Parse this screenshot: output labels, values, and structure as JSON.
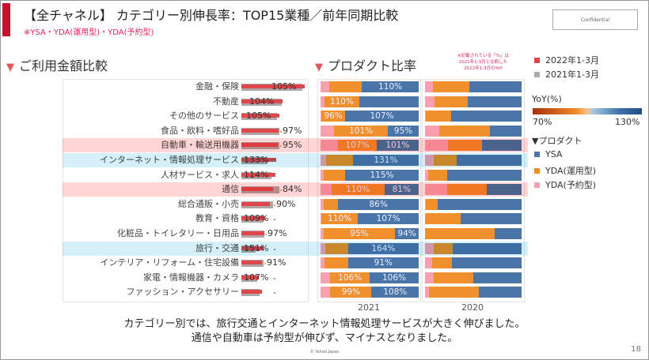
{
  "header": {
    "title": "【全チャネル】 カテゴリー別伸長率：TOP15業種／前年同期比較",
    "subtitle": "※YSA・YDA(運用型)・YDA(予約型)",
    "confidential": "Confidential"
  },
  "sections": {
    "left_title": "ご利用金額比較",
    "right_title": "プロダクト比率",
    "right_note": [
      "※記載されている「%」は",
      "2021年1-3月と比較した",
      "2022年1-3月のYoY"
    ]
  },
  "legend": {
    "period_2022": "2022年1-3月",
    "period_2021": "2021年1-3月",
    "yoy_title": "YoY(%)",
    "yoy_min": "70%",
    "yoy_max": "130%",
    "product_title": "▼プロダクト",
    "products": [
      "YSA",
      "YDA(運用型)",
      "YDA(予約型)"
    ]
  },
  "colors": {
    "bar_2022": "#e0474c",
    "bar_2021": "#b0a8a6",
    "ysa": "#4a75a8",
    "yda_unyo": "#f0902c",
    "yda_yoyaku": "#f8a0b0",
    "highlight_red": "#ffb3b3",
    "highlight_blue": "#b3e3f5",
    "dot_up": "#4a90d0",
    "dot_down": "#f0902c"
  },
  "chart_data": [
    {
      "type": "bar",
      "title": "ご利用金額比較",
      "categories": [
        "金融・保険",
        "不動産",
        "その他のサービス",
        "食品・飲料・嗜好品",
        "自動車・輸送用機器",
        "インターネット・情報処理サービス",
        "人材サービス・求人",
        "通信",
        "総合通販・小売",
        "教育・資格",
        "化粧品・トイレタリー・日用品",
        "旅行・交通",
        "インテリア・リフォーム・住宅設備",
        "家電・情報機器・カメラ",
        "ファッション・アクセサリー"
      ],
      "series": [
        {
          "name": "2022年1-3月",
          "values": [
            80,
            52,
            48,
            47,
            46,
            44,
            43,
            40,
            36,
            30,
            29,
            28,
            26,
            22,
            26
          ]
        },
        {
          "name": "2021年1-3月",
          "values": [
            77,
            51,
            45,
            48,
            48,
            33,
            38,
            48,
            40,
            28,
            29,
            18,
            28,
            20,
            23
          ]
        }
      ],
      "yoy_labels": [
        "105%",
        "104%",
        "105%",
        "97%",
        "95%",
        "133%",
        "114%",
        "84%",
        "90%",
        "109%",
        "97%",
        "151%",
        "91%",
        "107%",
        ""
      ],
      "highlight": [
        "",
        "",
        "",
        "",
        "red",
        "blue",
        "",
        "red",
        "",
        "",
        "",
        "blue",
        "",
        "",
        ""
      ]
    },
    {
      "type": "bar",
      "stacked": "100%",
      "title": "プロダクト比率",
      "panels": [
        {
          "label": "2021",
          "series": [
            {
              "name": "YDA(予約型)",
              "values": [
                0.086,
                0.04,
                0.01,
                0.14,
                0.18,
                0.06,
                0.03,
                0.11,
                0.03,
                0.01,
                0.03,
                0.05,
                0.04,
                0.1,
                0.1
              ]
            },
            {
              "name": "YDA(運用型)",
              "values": [
                0.336,
                0.355,
                0.24,
                0.545,
                0.39,
                0.27,
                0.22,
                0.54,
                0.15,
                0.37,
                0.73,
                0.23,
                0.24,
                0.4,
                0.42
              ]
            },
            {
              "name": "YSA",
              "values": [
                0.578,
                0.605,
                0.75,
                0.315,
                0.43,
                0.67,
                0.75,
                0.35,
                0.82,
                0.62,
                0.24,
                0.72,
                0.72,
                0.5,
                0.48
              ]
            }
          ],
          "labels_yda_unyo": [
            "",
            "110%",
            "96%",
            "101%",
            "107%",
            "",
            "",
            "110%",
            "",
            "110%",
            "95%",
            "",
            "",
            "106%",
            "99%"
          ],
          "labels_ysa": [
            "110%",
            "",
            "107%",
            "95%",
            "101%",
            "131%",
            "115%",
            "81%",
            "86%",
            "107%",
            "94%",
            "164%",
            "91%",
            "106%",
            "108%"
          ]
        },
        {
          "label": "2020",
          "series": [
            {
              "name": "YDA(予約型)",
              "values": [
                0.08,
                0.1,
                0.01,
                0.15,
                0.24,
                0.09,
                0.035,
                0.23,
                0.005,
                0,
                0,
                0.09,
                0.07,
                0.09,
                0.045
              ]
            },
            {
              "name": "YDA(運用型)",
              "values": [
                0.38,
                0.34,
                0.26,
                0.52,
                0.35,
                0.24,
                0.195,
                0.41,
                0.13,
                0.365,
                0.72,
                0.2,
                0.21,
                0.41,
                0.51
              ]
            },
            {
              "name": "YSA",
              "values": [
                0.54,
                0.56,
                0.73,
                0.33,
                0.41,
                0.67,
                0.77,
                0.36,
                0.865,
                0.635,
                0.28,
                0.71,
                0.72,
                0.5,
                0.445
              ]
            }
          ]
        }
      ]
    }
  ],
  "caption": [
    "カテゴリー別では、旅行交通とインターネット情報処理サービスが大きく伸びました。",
    "通信や自動車は予約型が伸びず、マイナスとなりました。"
  ],
  "footer": {
    "copyright": "© Yahoo Japan",
    "page": "18"
  }
}
